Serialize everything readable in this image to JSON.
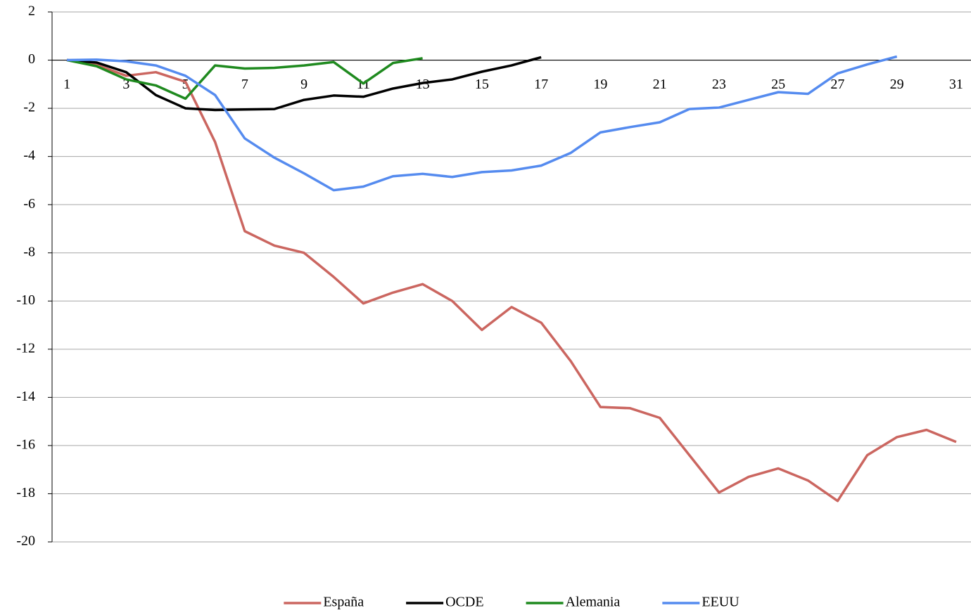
{
  "chart_data": {
    "type": "line",
    "categories": [
      1,
      null,
      3,
      null,
      5,
      null,
      7,
      null,
      9,
      null,
      11,
      null,
      13,
      null,
      15,
      null,
      17,
      null,
      19,
      null,
      21,
      null,
      23,
      null,
      25,
      null,
      27,
      null,
      29,
      null,
      31
    ],
    "series": [
      {
        "name": "España",
        "color": "#cb6660",
        "values": [
          0,
          -0.2,
          -0.65,
          -0.5,
          -0.9,
          -3.4,
          -7.1,
          -7.7,
          -8.0,
          -9.0,
          -10.1,
          -9.65,
          -9.3,
          -10.0,
          -11.2,
          -10.25,
          -10.9,
          -12.5,
          -14.4,
          -14.45,
          -14.85,
          -16.4,
          -17.95,
          -17.3,
          -16.95,
          -17.45,
          -18.3,
          -16.4,
          -15.65,
          -15.35,
          -15.85
        ]
      },
      {
        "name": "OCDE",
        "color": "#000000",
        "values": [
          0,
          -0.1,
          -0.5,
          -1.45,
          -2.0,
          -2.07,
          -2.05,
          -2.03,
          -1.65,
          -1.47,
          -1.52,
          -1.18,
          -0.95,
          -0.8,
          -0.48,
          -0.22,
          0.12,
          null,
          null,
          null,
          null,
          null,
          null,
          null,
          null,
          null,
          null,
          null,
          null,
          null,
          null
        ]
      },
      {
        "name": "Alemania",
        "color": "#1f8a1f",
        "values": [
          0,
          -0.25,
          -0.8,
          -1.05,
          -1.6,
          -0.22,
          -0.35,
          -0.32,
          -0.22,
          -0.08,
          -0.97,
          -0.12,
          0.08,
          null,
          null,
          null,
          null,
          null,
          null,
          null,
          null,
          null,
          null,
          null,
          null,
          null,
          null,
          null,
          null,
          null,
          null
        ]
      },
      {
        "name": "EEUU",
        "color": "#558bef",
        "values": [
          0,
          0.02,
          -0.05,
          -0.22,
          -0.65,
          -1.45,
          -3.25,
          -4.05,
          -4.7,
          -5.4,
          -5.25,
          -4.82,
          -4.72,
          -4.85,
          -4.65,
          -4.58,
          -4.38,
          -3.85,
          -3.0,
          -2.78,
          -2.58,
          -2.03,
          -1.97,
          -1.65,
          -1.33,
          -1.4,
          -0.55,
          -0.18,
          0.15,
          null,
          null
        ]
      }
    ],
    "ylim": [
      -20,
      2
    ],
    "yticks": [
      2,
      0,
      -2,
      -4,
      -6,
      -8,
      -10,
      -12,
      -14,
      -16,
      -18,
      -20
    ],
    "grid": true,
    "legend": "bottom"
  }
}
